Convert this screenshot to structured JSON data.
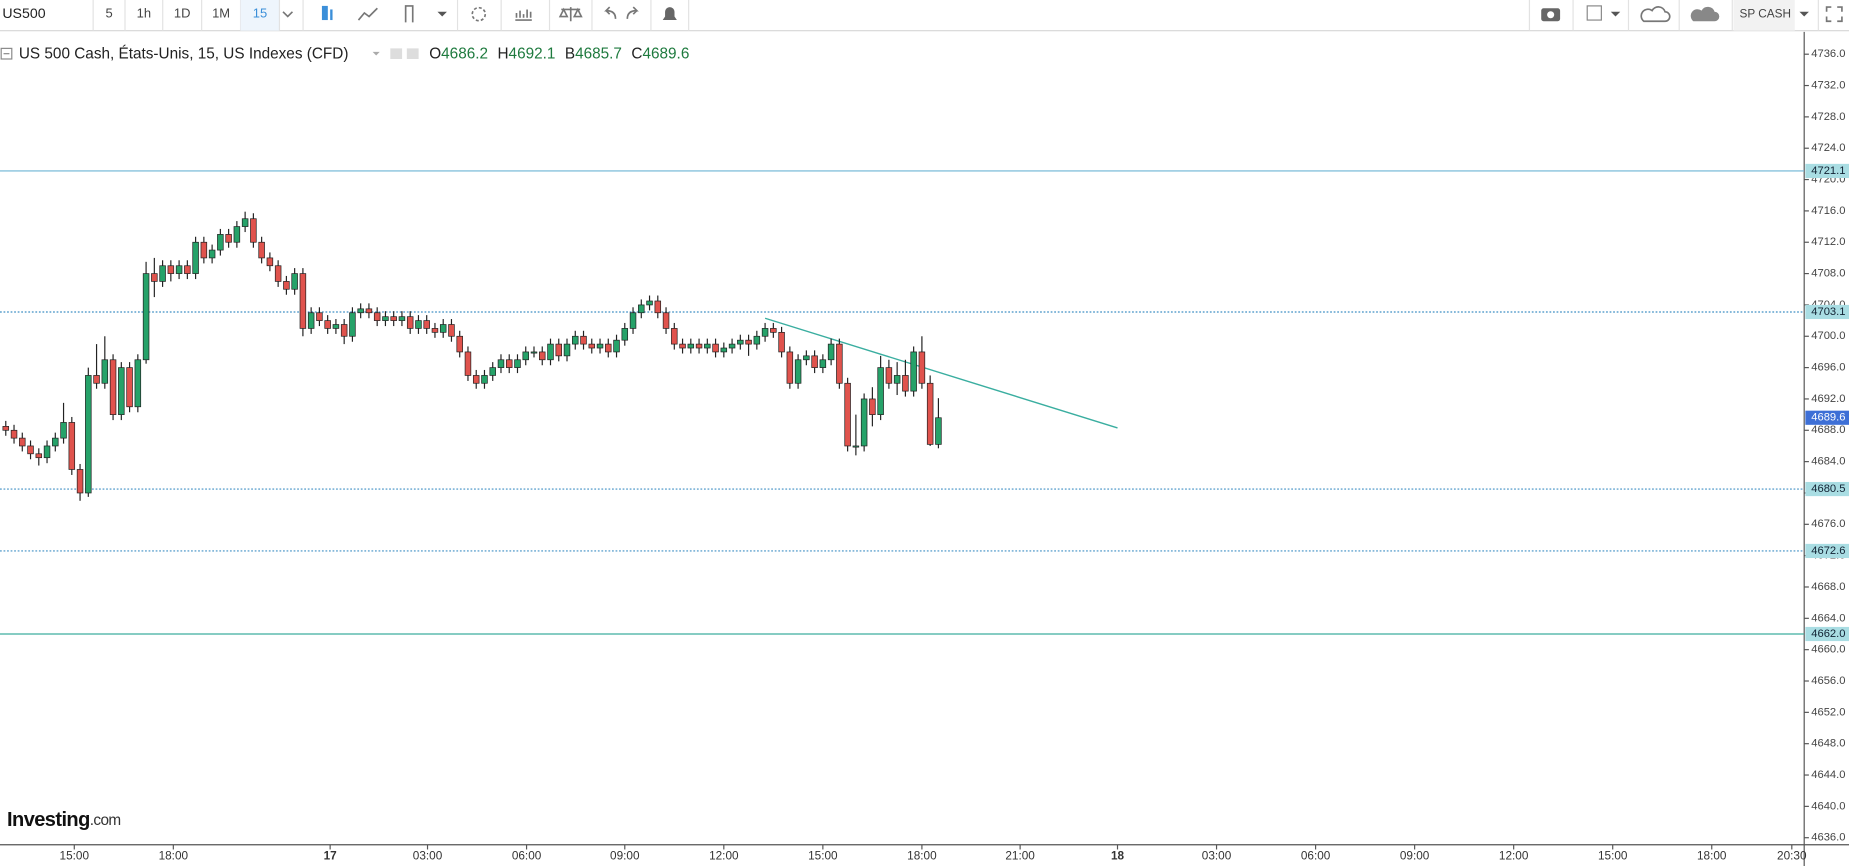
{
  "toolbar": {
    "symbol": "US500",
    "intervals": [
      "5",
      "1h",
      "1D",
      "1M",
      "15"
    ],
    "active_interval": 4,
    "account": "SP CASH"
  },
  "chart_data": {
    "type": "candlestick",
    "legend_title": "US 500 Cash, États-Unis, 15, US Indexes (CFD)",
    "ohlc_legend": [
      {
        "label": "O",
        "value": 4686.2
      },
      {
        "label": "H",
        "value": 4692.1
      },
      {
        "label": "B",
        "value": 4685.7
      },
      {
        "label": "C",
        "value": 4689.6
      }
    ],
    "watermark": [
      "Investing",
      ".com"
    ],
    "up_color": "#26a269",
    "down_color": "#e0534d",
    "last_price_color": "#3d6fd6",
    "open": [
      4688.5,
      4688,
      4687,
      4686,
      4685,
      4684.5,
      4686,
      4687,
      4689,
      4683,
      4680,
      4695,
      4694,
      4697,
      4690,
      4696,
      4691,
      4697,
      4708,
      4707,
      4709,
      4708,
      4709,
      4708,
      4712,
      4710,
      4711,
      4713,
      4712,
      4714,
      4715,
      4712,
      4710,
      4709,
      4707,
      4706,
      4708,
      4701,
      4703,
      4702,
      4701,
      4701.5,
      4700,
      4703,
      4703.5,
      4703,
      4702,
      4702.5,
      4702,
      4702.5,
      4701,
      4702,
      4701,
      4700.5,
      4701.5,
      4700,
      4698,
      4695,
      4694,
      4695,
      4696,
      4697,
      4696,
      4697,
      4698,
      4698,
      4697,
      4699,
      4697.5,
      4699,
      4700,
      4699,
      4698.5,
      4699,
      4698,
      4699.5,
      4701,
      4703,
      4704,
      4704.5,
      4703,
      4701,
      4699,
      4698.5,
      4699,
      4698.5,
      4699,
      4698,
      4698.5,
      4699,
      4699.5,
      4699,
      4700,
      4701,
      4700.5,
      4698,
      4694,
      4697,
      4697.5,
      4696,
      4697,
      4699,
      4694,
      4686,
      4686,
      4692,
      4690,
      4696,
      4694,
      4695,
      4693,
      4698,
      4694,
      4686.2
    ],
    "high": [
      4689.2,
      4688.7,
      4687.7,
      4686.7,
      4685.7,
      4686.7,
      4687.7,
      4691.5,
      4689.7,
      4683.7,
      4696,
      4699,
      4700,
      4697.7,
      4696.7,
      4696.7,
      4697.7,
      4709.5,
      4710,
      4709.7,
      4709.7,
      4709.7,
      4709.7,
      4712.7,
      4712.7,
      4711.7,
      4713.7,
      4713.7,
      4714.7,
      4715.9,
      4715.7,
      4712.7,
      4710.7,
      4709.7,
      4707.7,
      4708.7,
      4708.7,
      4703.7,
      4703.7,
      4702.7,
      4702.2,
      4702.2,
      4703.7,
      4704.2,
      4704.2,
      4703.7,
      4703.2,
      4703.2,
      4703.2,
      4703.2,
      4702.7,
      4702.7,
      4701.7,
      4702.2,
      4702.2,
      4700.7,
      4698.7,
      4695.7,
      4695.7,
      4696.7,
      4697.7,
      4697.7,
      4697.7,
      4698.7,
      4698.7,
      4698.7,
      4699.7,
      4699.7,
      4699.7,
      4700.7,
      4700.7,
      4699.7,
      4699.7,
      4699.7,
      4700.2,
      4701.7,
      4703.7,
      4704.7,
      4705.2,
      4705.2,
      4703.7,
      4701.7,
      4699.7,
      4699.7,
      4699.7,
      4699.7,
      4699.7,
      4699.2,
      4699.7,
      4700.2,
      4700.2,
      4700.7,
      4701.7,
      4701.7,
      4701.2,
      4698.7,
      4697.7,
      4698.2,
      4698.2,
      4697.7,
      4699.7,
      4699.7,
      4694.7,
      4690,
      4692.7,
      4693.5,
      4697.5,
      4697,
      4696.7,
      4697,
      4698.7,
      4700,
      4695,
      4692.1
    ],
    "low": [
      4687.3,
      4686.3,
      4685.3,
      4684.3,
      4683.5,
      4683.8,
      4685.3,
      4686.3,
      4682.3,
      4679,
      4679.5,
      4693.3,
      4693.3,
      4689.3,
      4689.3,
      4690.3,
      4690.3,
      4696.5,
      4705,
      4706.3,
      4707,
      4707.3,
      4707.3,
      4707.3,
      4709.3,
      4709.3,
      4710.3,
      4711.3,
      4711.3,
      4713.3,
      4711.3,
      4709.3,
      4708.3,
      4706.3,
      4705.3,
      4705.3,
      4700,
      4700.3,
      4701.3,
      4700.3,
      4700.3,
      4699,
      4699.3,
      4702.3,
      4702.3,
      4701.3,
      4701.3,
      4701.3,
      4701.3,
      4700.3,
      4700.3,
      4700.3,
      4699.8,
      4699.8,
      4699.3,
      4697.3,
      4694.3,
      4693.3,
      4693.3,
      4694.3,
      4695.3,
      4695.3,
      4695.3,
      4696.3,
      4697.3,
      4696.3,
      4696.3,
      4696.8,
      4696.8,
      4698.3,
      4698.3,
      4697.8,
      4697.8,
      4697.3,
      4697.3,
      4698.8,
      4700.3,
      4702.3,
      4703.3,
      4702.3,
      4700.3,
      4698.3,
      4697.8,
      4697.8,
      4697.8,
      4697.8,
      4697.3,
      4697.3,
      4697.8,
      4698.3,
      4697.5,
      4698.3,
      4699.3,
      4699.8,
      4697.3,
      4693.3,
      4693.3,
      4696.3,
      4695.3,
      4695.3,
      4696.3,
      4693.3,
      4685.3,
      4684.8,
      4685.3,
      4688.5,
      4689.3,
      4693.3,
      4692.5,
      4692.3,
      4692.3,
      4693.3,
      4686,
      4685.7
    ],
    "close": [
      4688,
      4687,
      4686,
      4685,
      4684.5,
      4686,
      4687,
      4689,
      4683,
      4680,
      4695,
      4694,
      4697,
      4690,
      4696,
      4691,
      4697,
      4708,
      4707,
      4709,
      4708,
      4709,
      4708,
      4712,
      4710,
      4711,
      4713,
      4712,
      4714,
      4715,
      4712,
      4710,
      4709,
      4707,
      4706,
      4708,
      4701,
      4703,
      4702,
      4701,
      4701.5,
      4700,
      4703,
      4703.5,
      4703,
      4702,
      4702.5,
      4702,
      4702.5,
      4701,
      4702,
      4701,
      4700.5,
      4701.5,
      4700,
      4698,
      4695,
      4694,
      4695,
      4696,
      4697,
      4696,
      4697,
      4698,
      4698,
      4697,
      4699,
      4697.5,
      4699,
      4700,
      4699,
      4698.5,
      4699,
      4698,
      4699.5,
      4701,
      4703,
      4704,
      4704.5,
      4703,
      4701,
      4699,
      4698.5,
      4699,
      4698.5,
      4699,
      4698,
      4698.5,
      4699,
      4699.5,
      4699,
      4700,
      4701,
      4700.5,
      4698,
      4694,
      4697,
      4697.5,
      4696,
      4697,
      4699,
      4694,
      4686,
      4686,
      4692,
      4690,
      4696,
      4694,
      4695,
      4693,
      4698,
      4694,
      4686.2,
      4689.6
    ],
    "levels": [
      {
        "value": 4721.1,
        "style": "solid",
        "color": "#6cb4d4"
      },
      {
        "value": 4703.1,
        "style": "dotted",
        "color": "#3f8fc4"
      },
      {
        "value": 4680.5,
        "style": "dotted",
        "color": "#3f8fc4"
      },
      {
        "value": 4672.6,
        "style": "dotted",
        "color": "#3f8fc4"
      },
      {
        "value": 4662,
        "label": "4662.0",
        "style": "solid",
        "color": "#3fae9f"
      }
    ],
    "trend_line": {
      "x": [
        92,
        134.7
      ],
      "y": [
        4702.3,
        4688.3
      ],
      "color": "#3aaea0"
    },
    "xlim": [
      -0.7,
      217.9
    ],
    "xticks": [
      {
        "value": 8.3,
        "label": "15:00"
      },
      {
        "value": 20.3,
        "label": "18:00"
      },
      {
        "value": 39.3,
        "label": "17"
      },
      {
        "value": 51.1,
        "label": "03:00"
      },
      {
        "value": 63.1,
        "label": "06:00"
      },
      {
        "value": 75,
        "label": "09:00"
      },
      {
        "value": 87,
        "label": "12:00"
      },
      {
        "value": 99,
        "label": "15:00"
      },
      {
        "value": 111,
        "label": "18:00"
      },
      {
        "value": 122.9,
        "label": "21:00"
      },
      {
        "value": 134.7,
        "label": "18"
      },
      {
        "value": 146.7,
        "label": "03:00"
      },
      {
        "value": 158.7,
        "label": "06:00"
      },
      {
        "value": 170.7,
        "label": "09:00"
      },
      {
        "value": 182.7,
        "label": "12:00"
      },
      {
        "value": 194.7,
        "label": "15:00"
      },
      {
        "value": 206.7,
        "label": "18:00"
      },
      {
        "value": 216.4,
        "label": "20:30"
      }
    ],
    "ylim": [
      4635.1,
      4738.4
    ],
    "yticks": [
      {
        "value": 4636,
        "label": "4636.0"
      },
      {
        "value": 4640,
        "label": "4640.0"
      },
      {
        "value": 4644,
        "label": "4644.0"
      },
      {
        "value": 4648,
        "label": "4648.0"
      },
      {
        "value": 4652,
        "label": "4652.0"
      },
      {
        "value": 4656,
        "label": "4656.0"
      },
      {
        "value": 4660,
        "label": "4660.0"
      },
      {
        "value": 4664,
        "label": "4664.0"
      },
      {
        "value": 4668,
        "label": "4668.0"
      },
      {
        "value": 4672,
        "label": "4672.0"
      },
      {
        "value": 4676,
        "label": "4676.0"
      },
      {
        "value": 4680,
        "label": "4680.0"
      },
      {
        "value": 4684,
        "label": "4684.0"
      },
      {
        "value": 4688,
        "label": "4688.0"
      },
      {
        "value": 4692,
        "label": "4692.0"
      },
      {
        "value": 4696,
        "label": "4696.0"
      },
      {
        "value": 4700,
        "label": "4700.0"
      },
      {
        "value": 4704,
        "label": "4704.0"
      },
      {
        "value": 4708,
        "label": "4708.0"
      },
      {
        "value": 4712,
        "label": "4712.0"
      },
      {
        "value": 4716,
        "label": "4716.0"
      },
      {
        "value": 4720,
        "label": "4720.0"
      },
      {
        "value": 4724,
        "label": "4724.0"
      },
      {
        "value": 4728,
        "label": "4728.0"
      },
      {
        "value": 4732,
        "label": "4732.0"
      },
      {
        "value": 4736,
        "label": "4736.0"
      }
    ]
  }
}
